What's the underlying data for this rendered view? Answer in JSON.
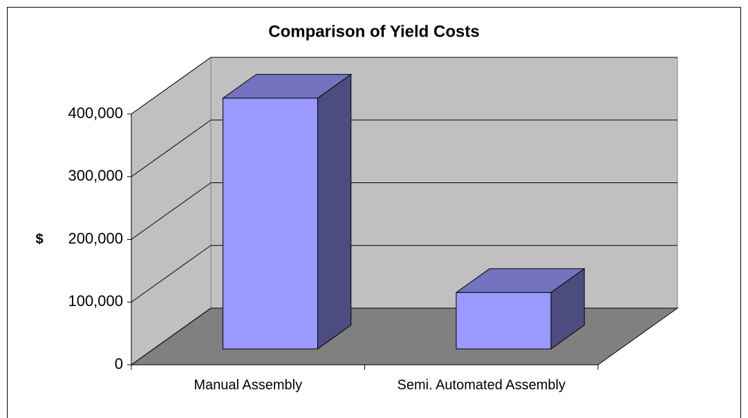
{
  "chart_data": {
    "type": "bar3d",
    "title": "Comparison of Yield Costs",
    "y_label": "$",
    "categories": [
      "Manual Assembly",
      "Semi. Automated Assembly"
    ],
    "values": [
      400000,
      90000
    ],
    "color": "#9999ff",
    "ylim": [
      0,
      400000
    ],
    "yticks": [
      0,
      {
        "value": 100000,
        "label": "100,000"
      },
      {
        "value": 200000,
        "label": "200,000"
      },
      {
        "value": 300000,
        "label": "300,000"
      },
      {
        "value": 400000,
        "label": "400,000"
      }
    ],
    "grid": true
  }
}
